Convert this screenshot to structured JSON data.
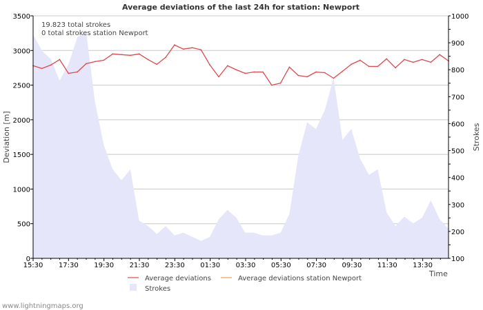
{
  "chart_data": {
    "type": "line",
    "title": "Average deviations of the last 24h for station: Newport",
    "ylabel": "Deviation  [m]",
    "y2label": "Strokes",
    "xlabel": "Time",
    "ylim": [
      0,
      3500
    ],
    "y2lim": [
      100,
      1000
    ],
    "y_ticks": [
      "0",
      "500",
      "1000",
      "1500",
      "2000",
      "2500",
      "3000",
      "3500"
    ],
    "y2_ticks": [
      "100",
      "200",
      "300",
      "400",
      "500",
      "600",
      "700",
      "800",
      "900",
      "1000"
    ],
    "x_ticks": [
      "15:30",
      "17:30",
      "19:30",
      "21:30",
      "23:30",
      "01:30",
      "03:30",
      "05:30",
      "07:30",
      "09:30",
      "11:30",
      "13:30"
    ],
    "grid": true,
    "annotations": [
      "19.823 total strokes",
      "0 total strokes station Newport"
    ],
    "series": [
      {
        "name": "Average deviations",
        "color": "#e0474c",
        "values": [
          2780,
          2740,
          2790,
          2870,
          2670,
          2690,
          2810,
          2840,
          2860,
          2950,
          2940,
          2930,
          2950,
          2870,
          2800,
          2900,
          3080,
          3020,
          3040,
          3010,
          2790,
          2620,
          2780,
          2720,
          2670,
          2690,
          2690,
          2500,
          2530,
          2760,
          2640,
          2620,
          2690,
          2680,
          2600,
          2700,
          2800,
          2860,
          2770,
          2770,
          2880,
          2750,
          2870,
          2830,
          2870,
          2830,
          2940,
          2850
        ]
      },
      {
        "name": "Average deviations station Newport",
        "color": "#f0a050",
        "values": []
      },
      {
        "name": "Strokes",
        "color": "#e6e6fa",
        "axis": "right",
        "values": [
          930,
          870,
          840,
          760,
          820,
          920,
          940,
          680,
          520,
          430,
          390,
          430,
          240,
          220,
          190,
          220,
          185,
          195,
          180,
          165,
          180,
          245,
          280,
          250,
          195,
          195,
          185,
          185,
          195,
          265,
          480,
          605,
          580,
          650,
          770,
          540,
          580,
          470,
          410,
          430,
          270,
          220,
          255,
          230,
          250,
          315,
          245,
          210
        ]
      }
    ]
  },
  "credit": "www.lightningmaps.org"
}
